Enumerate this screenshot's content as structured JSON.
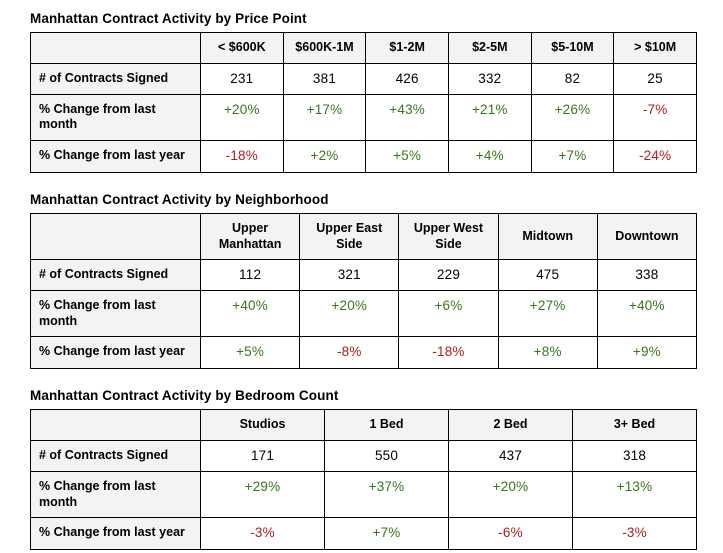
{
  "colors": {
    "positive": "#38761d",
    "negative": "#b01c1c",
    "header_bg": "#f3f3f3",
    "border": "#000000",
    "text": "#000000",
    "page_background": "#ffffff"
  },
  "chart_data": [
    {
      "type": "table",
      "title": "Manhattan Contract Activity by Price Point",
      "columns": [
        "< $600K",
        "$600K-1M",
        "$1-2M",
        "$2-5M",
        "$5-10M",
        "> $10M"
      ],
      "rows": [
        {
          "label": "# of Contracts Signed",
          "values": [
            "231",
            "381",
            "426",
            "332",
            "82",
            "25"
          ]
        },
        {
          "label": "% Change from last month",
          "values": [
            "+20%",
            "+17%",
            "+43%",
            "+21%",
            "+26%",
            "-7%"
          ]
        },
        {
          "label": "% Change from last year",
          "values": [
            "-18%",
            "+2%",
            "+5%",
            "+4%",
            "+7%",
            "-24%"
          ]
        }
      ]
    },
    {
      "type": "table",
      "title": "Manhattan Contract Activity by Neighborhood",
      "columns": [
        "Upper Manhattan",
        "Upper East Side",
        "Upper West Side",
        "Midtown",
        "Downtown"
      ],
      "rows": [
        {
          "label": "# of Contracts Signed",
          "values": [
            "112",
            "321",
            "229",
            "475",
            "338"
          ]
        },
        {
          "label": "% Change from last month",
          "values": [
            "+40%",
            "+20%",
            "+6%",
            "+27%",
            "+40%"
          ]
        },
        {
          "label": "% Change from last year",
          "values": [
            "+5%",
            "-8%",
            "-18%",
            "+8%",
            "+9%"
          ]
        }
      ]
    },
    {
      "type": "table",
      "title": "Manhattan Contract Activity by Bedroom Count",
      "columns": [
        "Studios",
        "1 Bed",
        "2 Bed",
        "3+ Bed"
      ],
      "rows": [
        {
          "label": "# of Contracts Signed",
          "values": [
            "171",
            "550",
            "437",
            "318"
          ]
        },
        {
          "label": "% Change from last month",
          "values": [
            "+29%",
            "+37%",
            "+20%",
            "+13%"
          ]
        },
        {
          "label": "% Change from last year",
          "values": [
            "-3%",
            "+7%",
            "-6%",
            "-3%"
          ]
        }
      ]
    }
  ]
}
